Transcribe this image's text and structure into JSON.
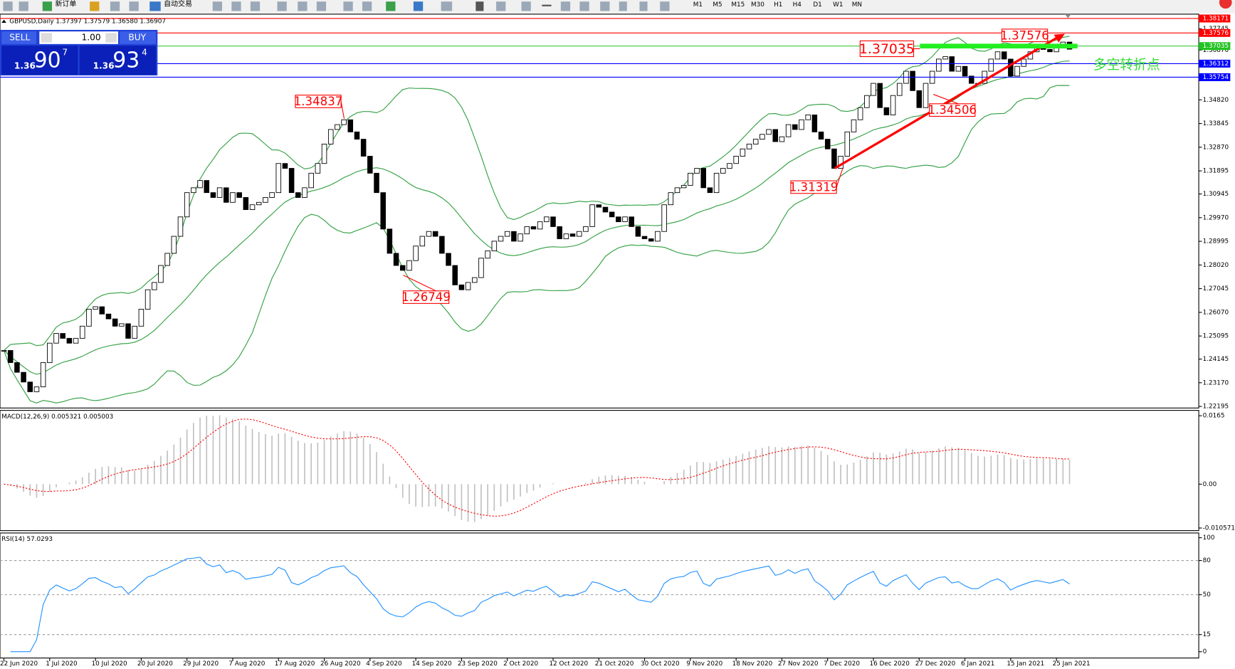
{
  "toolbar": {
    "new_order": "新订单",
    "auto_trading": "自动交易",
    "timeframes": [
      "M1",
      "M5",
      "M15",
      "M30",
      "H1",
      "H4",
      "D1",
      "W1",
      "MN"
    ]
  },
  "trade_panel": {
    "sell": "SELL",
    "buy": "BUY",
    "lot": "1.00",
    "sell_price": {
      "big": "1.36",
      "main": "90",
      "small": "7"
    },
    "buy_price": {
      "big": "1.36",
      "main": "93",
      "small": "4"
    }
  },
  "chart_data": [
    {
      "type": "candlestick",
      "title": "GBPUSD,Daily 1.37397 1.37579 1.36580 1.36907",
      "categories": [
        "22 Jun 2020",
        null,
        null,
        null,
        null,
        null,
        null,
        "1 Jul 2020",
        null,
        null,
        null,
        null,
        null,
        null,
        "10 Jul 2020",
        null,
        null,
        null,
        null,
        null,
        null,
        "20 Jul 2020",
        null,
        null,
        null,
        null,
        null,
        null,
        "29 Jul 2020",
        null,
        null,
        null,
        null,
        null,
        null,
        "7 Aug 2020",
        null,
        null,
        null,
        null,
        null,
        null,
        "17 Aug 2020",
        null,
        null,
        null,
        null,
        null,
        null,
        "26 Aug 2020",
        null,
        null,
        null,
        null,
        null,
        null,
        "4 Sep 2020",
        null,
        null,
        null,
        null,
        null,
        null,
        "14 Sep 2020",
        null,
        null,
        null,
        null,
        null,
        null,
        "23 Sep 2020",
        null,
        null,
        null,
        null,
        null,
        null,
        "2 Oct 2020",
        null,
        null,
        null,
        null,
        null,
        null,
        "12 Oct 2020",
        null,
        null,
        null,
        null,
        null,
        null,
        "21 Oct 2020",
        null,
        null,
        null,
        null,
        null,
        null,
        "30 Oct 2020",
        null,
        null,
        null,
        null,
        null,
        null,
        "9 Nov 2020",
        null,
        null,
        null,
        null,
        null,
        null,
        "18 Nov 2020",
        null,
        null,
        null,
        null,
        null,
        null,
        "27 Nov 2020",
        null,
        null,
        null,
        null,
        null,
        null,
        "7 Dec 2020",
        null,
        null,
        null,
        null,
        null,
        null,
        "16 Dec 2020",
        null,
        null,
        null,
        null,
        null,
        null,
        "27 Dec 2020",
        null,
        null,
        null,
        null,
        null,
        null,
        "6 Jan 2021",
        null,
        null,
        null,
        null,
        null,
        null,
        "15 Jan 2021",
        null,
        null,
        null,
        null,
        null,
        null,
        "25 Jan 2021",
        null,
        null
      ],
      "values": [
        1.245,
        1.24,
        1.236,
        1.232,
        1.228,
        1.23,
        1.24,
        1.248,
        1.252,
        1.25,
        1.248,
        1.25,
        1.255,
        1.262,
        1.263,
        1.26,
        1.258,
        1.255,
        1.256,
        1.25,
        1.255,
        1.262,
        1.27,
        1.273,
        1.28,
        1.285,
        1.292,
        1.3,
        1.31,
        1.312,
        1.315,
        1.31,
        1.308,
        1.312,
        1.306,
        1.31,
        1.308,
        1.303,
        1.305,
        1.306,
        1.308,
        1.31,
        1.322,
        1.32,
        1.31,
        1.308,
        1.312,
        1.318,
        1.322,
        1.33,
        1.336,
        1.338,
        1.34,
        1.335,
        1.332,
        1.325,
        1.318,
        1.31,
        1.295,
        1.285,
        1.28,
        1.278,
        1.282,
        1.288,
        1.292,
        1.294,
        1.292,
        1.285,
        1.28,
        1.272,
        1.27,
        1.273,
        1.275,
        1.283,
        1.286,
        1.29,
        1.292,
        1.294,
        1.29,
        1.293,
        1.296,
        1.295,
        1.298,
        1.3,
        1.296,
        1.291,
        1.293,
        1.292,
        1.294,
        1.296,
        1.305,
        1.304,
        1.302,
        1.3,
        1.298,
        1.3,
        1.296,
        1.292,
        1.291,
        1.29,
        1.294,
        1.305,
        1.31,
        1.312,
        1.313,
        1.318,
        1.32,
        1.312,
        1.31,
        1.318,
        1.32,
        1.322,
        1.325,
        1.328,
        1.33,
        1.332,
        1.334,
        1.336,
        1.331,
        1.333,
        1.338,
        1.336,
        1.34,
        1.342,
        1.335,
        1.332,
        1.328,
        1.32,
        1.325,
        1.335,
        1.34,
        1.345,
        1.35,
        1.355,
        1.345,
        1.342,
        1.35,
        1.355,
        1.36,
        1.352,
        1.345,
        1.355,
        1.36,
        1.365,
        1.366,
        1.36,
        1.362,
        1.358,
        1.355,
        1.355,
        1.36,
        1.365,
        1.368,
        1.365,
        1.358,
        1.362,
        1.365,
        1.368,
        1.37,
        1.369,
        1.368,
        1.37,
        1.372,
        1.36907
      ],
      "color_up": "#ffffff",
      "color_down": "#000000",
      "band_color": "#2e9e3e",
      "ylim": [
        1.2213,
        1.3835
      ],
      "yticks": [
        1.37745,
        {
          "value": 1.3687,
          "label": "1.36870"
        },
        {
          "value": 1.3482,
          "label": "1.34820"
        },
        1.33845,
        {
          "value": 1.3287,
          "label": "1.32870"
        },
        1.31895,
        1.30945,
        {
          "value": 1.2997,
          "label": "1.29970"
        },
        1.28995,
        {
          "value": 1.2802,
          "label": "1.28020"
        },
        1.27045,
        {
          "value": 1.2607,
          "label": "1.26070"
        },
        1.25095,
        1.24145,
        {
          "value": 1.2317,
          "label": "1.23170"
        },
        1.22195
      ],
      "levels": [
        {
          "value": 1.38171,
          "color": "#ff0000"
        },
        {
          "value": 1.37576,
          "color": "#ff0000"
        },
        {
          "value": 1.37035,
          "color": "#22c322"
        },
        {
          "value": 1.36312,
          "color": "#0000ff"
        },
        {
          "value": 1.35754,
          "color": "#0000ff"
        }
      ],
      "annotations": [
        "1.34837",
        "1.26749",
        "1.31319",
        "1.34506",
        "1.37035",
        "1.37576"
      ],
      "annotation_text": "多空转折点"
    },
    {
      "type": "macd",
      "title": "MACD(12,26,9) 0.005321 0.005003",
      "histogram_color": "#c0c0c0",
      "signal_color": "#ff0000",
      "ylim": [
        -0.0112,
        0.0178
      ],
      "yticks": [
        0.0165,
        {
          "value": 0,
          "label": "0.00"
        },
        -0.010571
      ]
    },
    {
      "type": "rsi",
      "title": "RSI(14) 57.0293",
      "color": "#1e90ff",
      "ylim": [
        0,
        100
      ],
      "yticks": [
        100,
        80,
        50,
        15,
        0
      ]
    }
  ]
}
